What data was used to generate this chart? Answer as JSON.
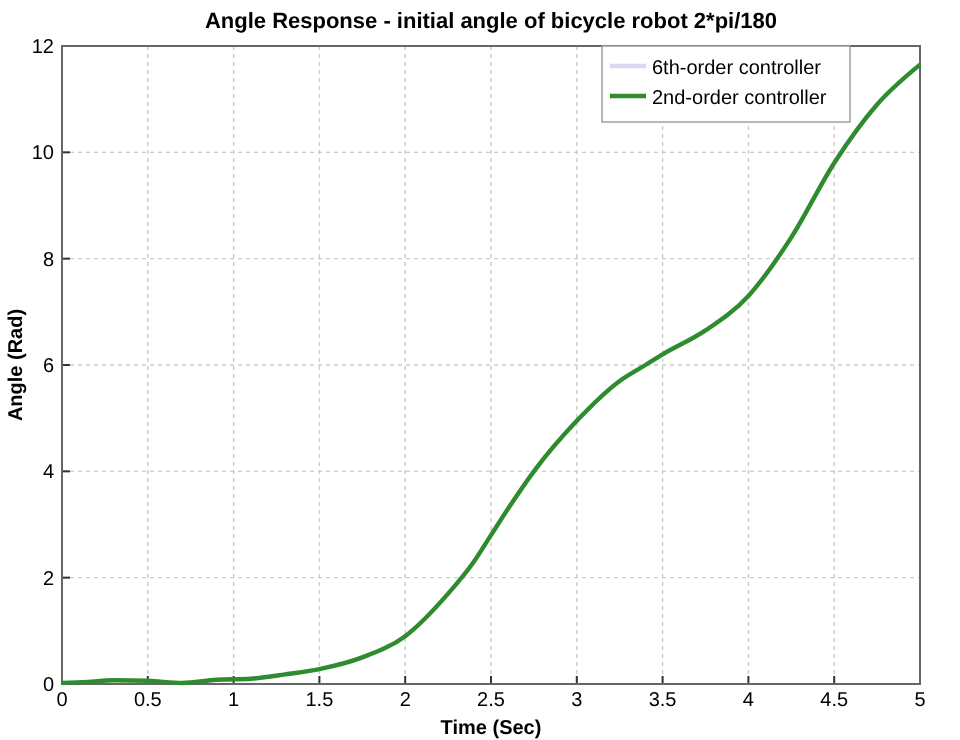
{
  "chart_data": {
    "type": "line",
    "title": "Angle Response - initial angle of bicycle robot 2*pi/180",
    "xlabel": "Time (Sec)",
    "ylabel": "Angle (Rad)",
    "x": [
      0,
      0.15,
      0.3,
      0.5,
      0.7,
      0.9,
      1.1,
      1.3,
      1.5,
      1.75,
      2,
      2.25,
      2.4,
      2.5,
      2.6,
      2.75,
      3,
      3.25,
      3.4,
      3.5,
      3.75,
      4,
      4.25,
      4.5,
      4.75,
      5
    ],
    "series": [
      {
        "name": "6th-order controller",
        "color": "#d8d8f0",
        "values": [
          null,
          null,
          null,
          null,
          null,
          null,
          null,
          null,
          null,
          null,
          null,
          null,
          null,
          null,
          null,
          null,
          null,
          null,
          null,
          null,
          null,
          null,
          null,
          null,
          null,
          null
        ]
      },
      {
        "name": "2nd-order controller",
        "color": "#2e8b2e",
        "values": [
          0.02,
          0.04,
          0.07,
          0.06,
          0.02,
          0.08,
          0.1,
          0.18,
          0.28,
          0.5,
          0.9,
          1.7,
          2.3,
          2.8,
          3.3,
          4.0,
          4.95,
          5.7,
          6.0,
          6.2,
          6.65,
          7.3,
          8.4,
          9.8,
          10.9,
          11.65
        ]
      }
    ],
    "xlim": [
      0,
      5
    ],
    "xticks": [
      0,
      0.5,
      1,
      1.5,
      2,
      2.5,
      3,
      3.5,
      4,
      4.5,
      5
    ],
    "ylim": [
      0,
      12
    ],
    "yticks": [
      0,
      2,
      4,
      6,
      8,
      10,
      12
    ],
    "grid": true,
    "legend": "top right"
  }
}
